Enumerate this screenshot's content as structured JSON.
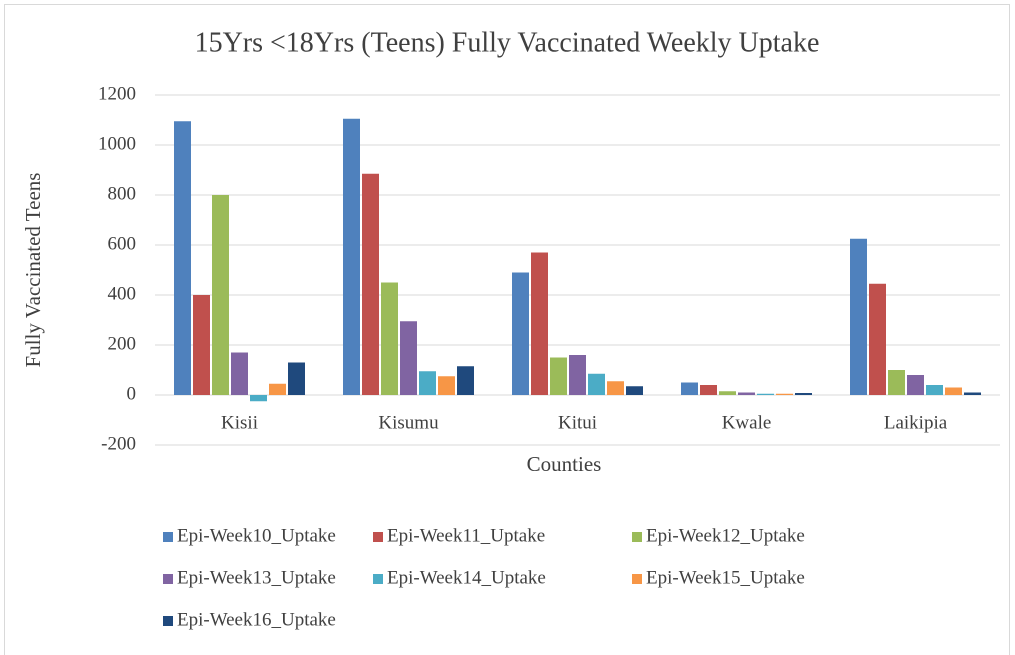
{
  "chart_data": {
    "type": "bar",
    "title": "15Yrs <18Yrs (Teens) Fully Vaccinated Weekly Uptake",
    "x_label": "Counties",
    "y_label": "Fully Vaccinated Teens",
    "categories": [
      "Kisii",
      "Kisumu",
      "Kitui",
      "Kwale",
      "Laikipia"
    ],
    "series": [
      {
        "name": "Epi-Week10_Uptake",
        "color": "#4f81bd",
        "values": [
          1095,
          1105,
          490,
          50,
          625
        ]
      },
      {
        "name": "Epi-Week11_Uptake",
        "color": "#c0504d",
        "values": [
          400,
          885,
          570,
          40,
          445
        ]
      },
      {
        "name": "Epi-Week12_Uptake",
        "color": "#9bbb59",
        "values": [
          800,
          450,
          150,
          15,
          100
        ]
      },
      {
        "name": "Epi-Week13_Uptake",
        "color": "#8064a2",
        "values": [
          170,
          295,
          160,
          10,
          80
        ]
      },
      {
        "name": "Epi-Week14_Uptake",
        "color": "#4bacc6",
        "values": [
          -25,
          95,
          85,
          5,
          40
        ]
      },
      {
        "name": "Epi-Week15_Uptake",
        "color": "#f79646",
        "values": [
          45,
          75,
          55,
          5,
          30
        ]
      },
      {
        "name": "Epi-Week16_Uptake",
        "color": "#1f497d",
        "values": [
          130,
          115,
          35,
          8,
          10
        ]
      }
    ],
    "ylim": [
      -200,
      1200
    ],
    "yticks": [
      -200,
      0,
      200,
      400,
      600,
      800,
      1000,
      1200
    ],
    "grid": true,
    "legend": "bottom"
  }
}
